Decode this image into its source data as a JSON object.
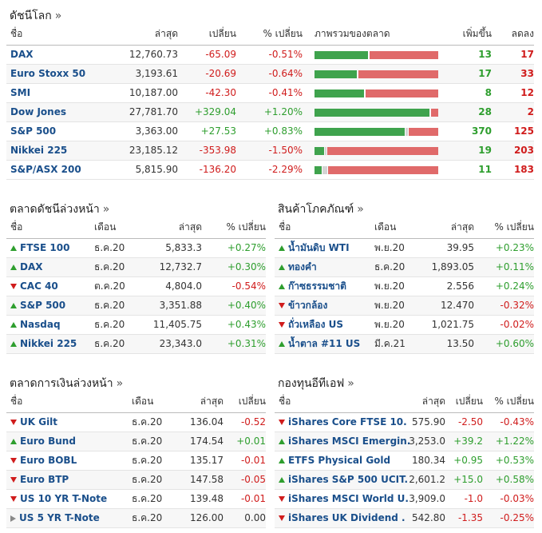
{
  "world_indices": {
    "title": "ดัชนีโลก",
    "chevron": "»",
    "headers": {
      "name": "ชื่อ",
      "last": "ล่าสุด",
      "change": "เปลี่ยน",
      "pct": "% เปลี่ยน",
      "overview": "ภาพรวมของตลาด",
      "up": "เพิ่มขึ้น",
      "down": "ลดลง"
    },
    "rows": [
      {
        "name": "DAX",
        "last": "12,760.73",
        "change": "-65.09",
        "pct": "-0.51%",
        "dir": "neg",
        "up": "13",
        "down": "17",
        "adv_frac": 0.43,
        "unch_frac": 0.0
      },
      {
        "name": "Euro Stoxx 50",
        "last": "3,193.61",
        "change": "-20.69",
        "pct": "-0.64%",
        "dir": "neg",
        "up": "17",
        "down": "33",
        "adv_frac": 0.34,
        "unch_frac": 0.0
      },
      {
        "name": "SMI",
        "last": "10,187.00",
        "change": "-42.30",
        "pct": "-0.41%",
        "dir": "neg",
        "up": "8",
        "down": "12",
        "adv_frac": 0.4,
        "unch_frac": 0.0
      },
      {
        "name": "Dow Jones",
        "last": "27,781.70",
        "change": "+329.04",
        "pct": "+1.20%",
        "dir": "pos",
        "up": "28",
        "down": "2",
        "adv_frac": 0.93,
        "unch_frac": 0.0
      },
      {
        "name": "S&P 500",
        "last": "3,363.00",
        "change": "+27.53",
        "pct": "+0.83%",
        "dir": "pos",
        "up": "370",
        "down": "125",
        "adv_frac": 0.73,
        "unch_frac": 0.02
      },
      {
        "name": "Nikkei 225",
        "last": "23,185.12",
        "change": "-353.98",
        "pct": "-1.50%",
        "dir": "neg",
        "up": "19",
        "down": "203",
        "adv_frac": 0.08,
        "unch_frac": 0.01
      },
      {
        "name": "S&P/ASX 200",
        "last": "5,815.90",
        "change": "-136.20",
        "pct": "-2.29%",
        "dir": "neg",
        "up": "11",
        "down": "183",
        "adv_frac": 0.06,
        "unch_frac": 0.04
      }
    ]
  },
  "index_futures": {
    "title": "ตลาดดัชนีล่วงหน้า",
    "chevron": "»",
    "headers": {
      "name": "ชื่อ",
      "month": "เดือน",
      "last": "ล่าสุด",
      "pct": "% เปลี่ยน"
    },
    "rows": [
      {
        "arrow": "up",
        "name": "FTSE 100",
        "month": "ธ.ค.20",
        "last": "5,833.3",
        "pct": "+0.27%",
        "dir": "pos"
      },
      {
        "arrow": "up",
        "name": "DAX",
        "month": "ธ.ค.20",
        "last": "12,732.7",
        "pct": "+0.30%",
        "dir": "pos"
      },
      {
        "arrow": "down",
        "name": "CAC 40",
        "month": "ต.ค.20",
        "last": "4,804.0",
        "pct": "-0.54%",
        "dir": "neg"
      },
      {
        "arrow": "up",
        "name": "S&P 500",
        "month": "ธ.ค.20",
        "last": "3,351.88",
        "pct": "+0.40%",
        "dir": "pos"
      },
      {
        "arrow": "up",
        "name": "Nasdaq",
        "month": "ธ.ค.20",
        "last": "11,405.75",
        "pct": "+0.43%",
        "dir": "pos"
      },
      {
        "arrow": "up",
        "name": "Nikkei 225",
        "month": "ธ.ค.20",
        "last": "23,343.0",
        "pct": "+0.31%",
        "dir": "pos"
      }
    ]
  },
  "commodities": {
    "title": "สินค้าโภคภัณฑ์",
    "chevron": "»",
    "headers": {
      "name": "ชื่อ",
      "month": "เดือน",
      "last": "ล่าสุด",
      "pct": "% เปลี่ยน"
    },
    "rows": [
      {
        "arrow": "up",
        "name": "น้ำมันดิบ WTI",
        "month": "พ.ย.20",
        "last": "39.95",
        "pct": "+0.23%",
        "dir": "pos"
      },
      {
        "arrow": "up",
        "name": "ทองคำ",
        "month": "ธ.ค.20",
        "last": "1,893.05",
        "pct": "+0.11%",
        "dir": "pos"
      },
      {
        "arrow": "up",
        "name": "ก๊าซธรรมชาติ",
        "month": "พ.ย.20",
        "last": "2.556",
        "pct": "+0.24%",
        "dir": "pos"
      },
      {
        "arrow": "down",
        "name": "ข้าวกล้อง",
        "month": "พ.ย.20",
        "last": "12.470",
        "pct": "-0.32%",
        "dir": "neg"
      },
      {
        "arrow": "down",
        "name": "ถั่วเหลือง US",
        "month": "พ.ย.20",
        "last": "1,021.75",
        "pct": "-0.02%",
        "dir": "neg"
      },
      {
        "arrow": "up",
        "name": "น้ำตาล #11 US",
        "month": "มี.ค.21",
        "last": "13.50",
        "pct": "+0.60%",
        "dir": "pos"
      }
    ]
  },
  "rate_futures": {
    "title": "ตลาดการเงินล่วงหน้า",
    "chevron": "»",
    "headers": {
      "name": "ชื่อ",
      "month": "เดือน",
      "last": "ล่าสุด",
      "change": "เปลี่ยน"
    },
    "rows": [
      {
        "arrow": "down",
        "name": "UK Gilt",
        "month": "ธ.ค.20",
        "last": "136.04",
        "change": "-0.52",
        "dir": "neg"
      },
      {
        "arrow": "up",
        "name": "Euro Bund",
        "month": "ธ.ค.20",
        "last": "174.54",
        "change": "+0.01",
        "dir": "pos"
      },
      {
        "arrow": "down",
        "name": "Euro BOBL",
        "month": "ธ.ค.20",
        "last": "135.17",
        "change": "-0.01",
        "dir": "neg"
      },
      {
        "arrow": "down",
        "name": "Euro BTP",
        "month": "ธ.ค.20",
        "last": "147.58",
        "change": "-0.05",
        "dir": "neg"
      },
      {
        "arrow": "down",
        "name": "US 10 YR T-Note",
        "month": "ธ.ค.20",
        "last": "139.48",
        "change": "-0.01",
        "dir": "neg"
      },
      {
        "arrow": "flat",
        "name": "US 5 YR T-Note",
        "month": "ธ.ค.20",
        "last": "126.00",
        "change": "0.00",
        "dir": "neu"
      }
    ]
  },
  "etfs": {
    "title": "กองทุนอีทีเอฟ",
    "chevron": "»",
    "headers": {
      "name": "ชื่อ",
      "last": "ล่าสุด",
      "change": "เปลี่ยน",
      "pct": "% เปลี่ยน"
    },
    "rows": [
      {
        "arrow": "down",
        "name": "iShares Core FTSE 10.",
        "last": "575.90",
        "change": "-2.50",
        "pct": "-0.43%",
        "dir": "neg"
      },
      {
        "arrow": "up",
        "name": "iShares MSCI Emergin.",
        "last": "3,253.0",
        "change": "+39.2",
        "pct": "+1.22%",
        "dir": "pos"
      },
      {
        "arrow": "up",
        "name": "ETFS Physical Gold",
        "last": "180.34",
        "change": "+0.95",
        "pct": "+0.53%",
        "dir": "pos"
      },
      {
        "arrow": "up",
        "name": "iShares S&P 500 UCIT.",
        "last": "2,601.2",
        "change": "+15.0",
        "pct": "+0.58%",
        "dir": "pos"
      },
      {
        "arrow": "down",
        "name": "iShares MSCI World U.",
        "last": "3,909.0",
        "change": "-1.0",
        "pct": "-0.03%",
        "dir": "neg"
      },
      {
        "arrow": "down",
        "name": "iShares UK Dividend .",
        "last": "542.80",
        "change": "-1.35",
        "pct": "-0.25%",
        "dir": "neg"
      }
    ]
  }
}
